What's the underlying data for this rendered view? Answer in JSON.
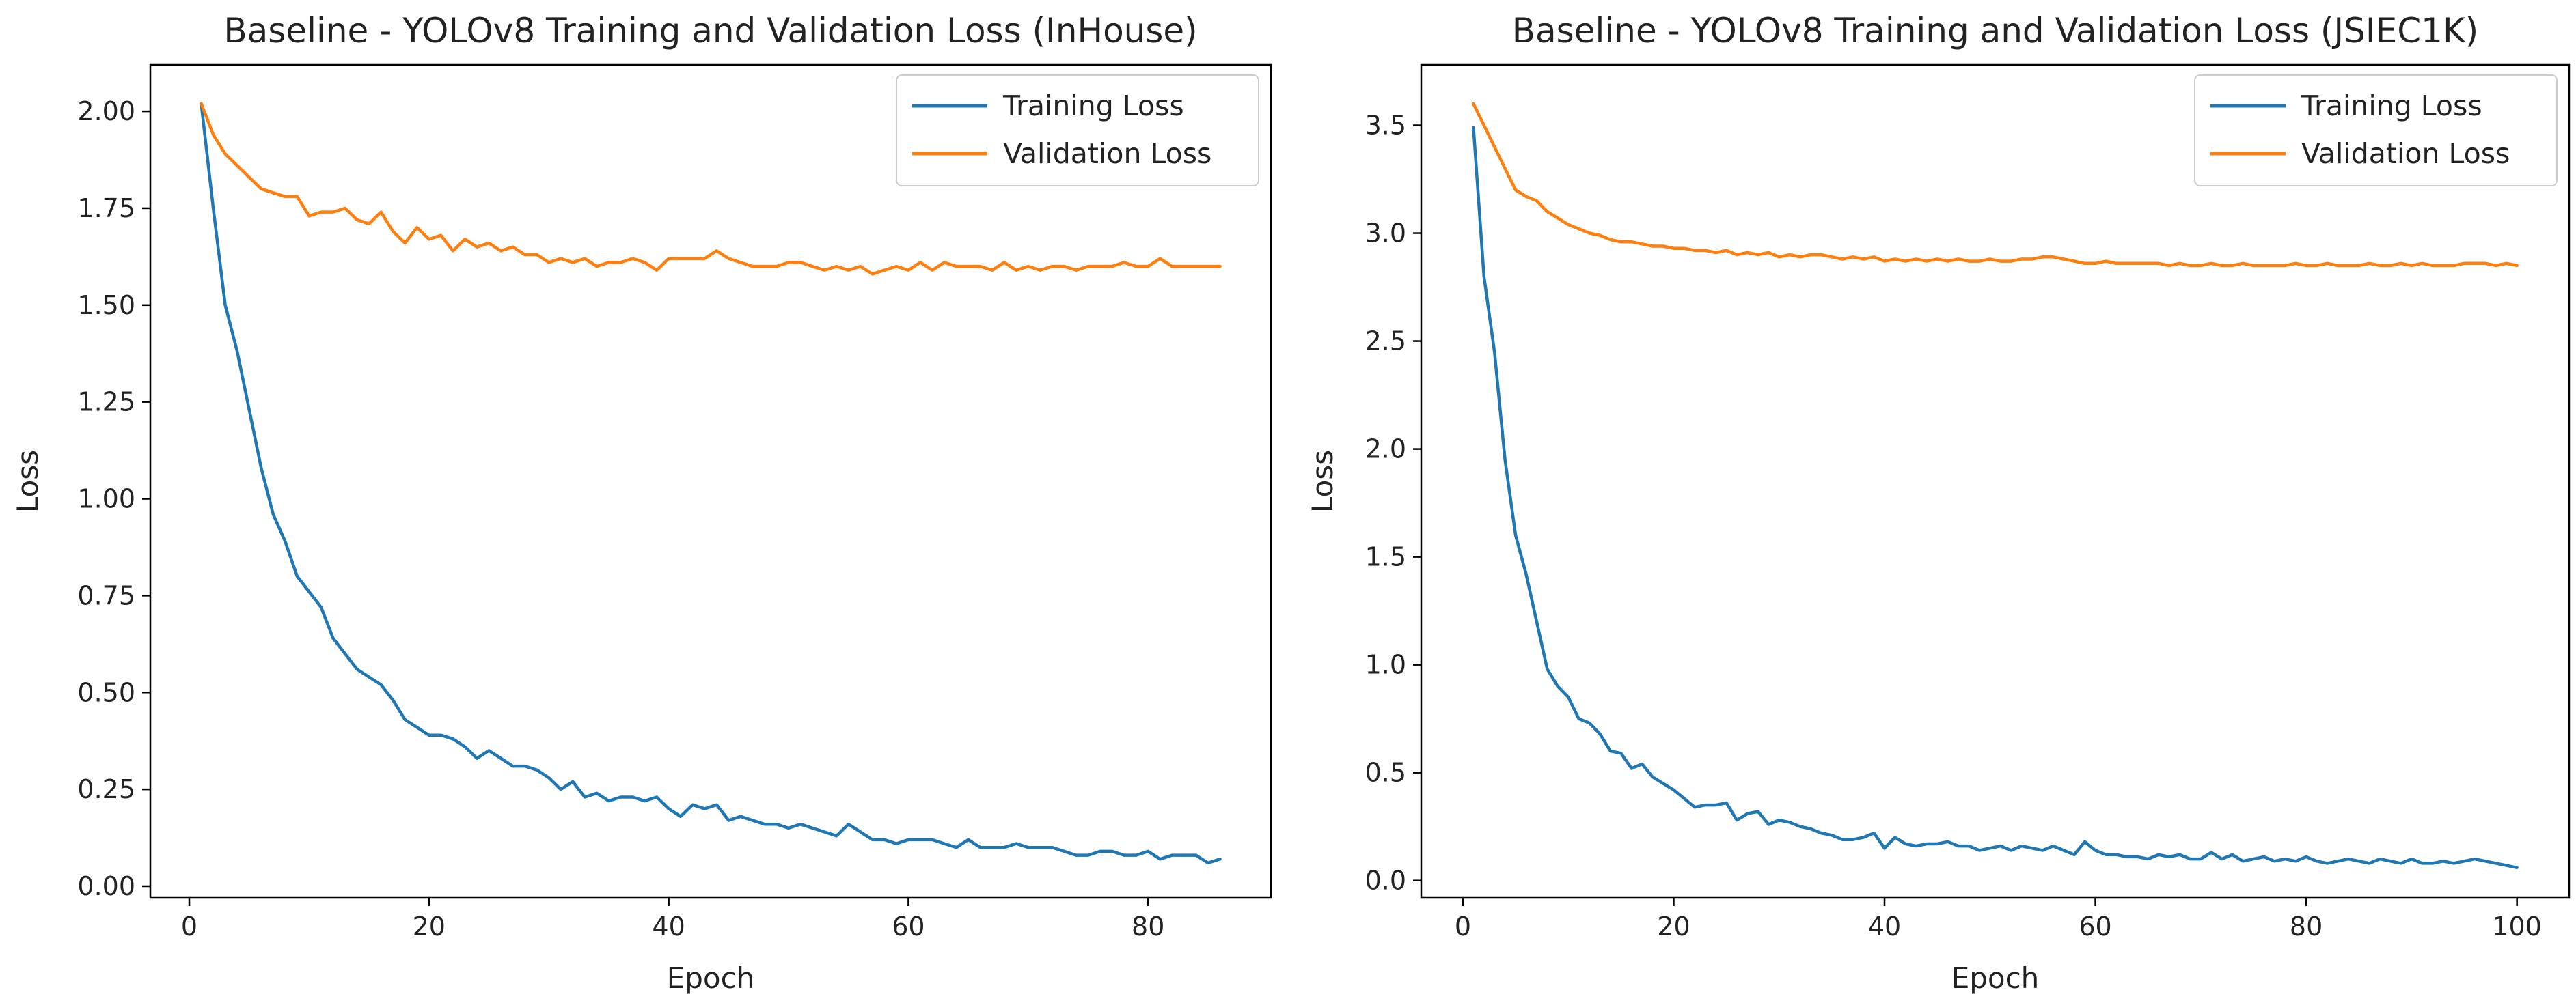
{
  "chart_data": [
    {
      "type": "line",
      "title": "Baseline - YOLOv8 Training and Validation Loss (InHouse)",
      "xlabel": "Epoch",
      "ylabel": "Loss",
      "xlim": [
        -3.25,
        90.25
      ],
      "ylim": [
        -0.03,
        2.12
      ],
      "xticks": [
        0,
        20,
        40,
        60,
        80
      ],
      "xtick_labels": [
        "0",
        "20",
        "40",
        "60",
        "80"
      ],
      "yticks": [
        0,
        0.25,
        0.5,
        0.75,
        1.0,
        1.25,
        1.5,
        1.75,
        2.0
      ],
      "ytick_labels": [
        "0.00",
        "0.25",
        "0.50",
        "0.75",
        "1.00",
        "1.25",
        "1.50",
        "1.75",
        "2.00"
      ],
      "grid": false,
      "legend_position": "upper right",
      "x_start": 1,
      "series": [
        {
          "name": "Training Loss",
          "color": "#1f77b4",
          "values": [
            2.02,
            1.75,
            1.5,
            1.38,
            1.23,
            1.08,
            0.96,
            0.89,
            0.8,
            0.76,
            0.72,
            0.64,
            0.6,
            0.56,
            0.54,
            0.52,
            0.48,
            0.43,
            0.41,
            0.39,
            0.39,
            0.38,
            0.36,
            0.33,
            0.35,
            0.33,
            0.31,
            0.31,
            0.3,
            0.28,
            0.25,
            0.27,
            0.23,
            0.24,
            0.22,
            0.23,
            0.23,
            0.22,
            0.23,
            0.2,
            0.18,
            0.21,
            0.2,
            0.21,
            0.17,
            0.18,
            0.17,
            0.16,
            0.16,
            0.15,
            0.16,
            0.15,
            0.14,
            0.13,
            0.16,
            0.14,
            0.12,
            0.12,
            0.11,
            0.12,
            0.12,
            0.12,
            0.11,
            0.1,
            0.12,
            0.1,
            0.1,
            0.1,
            0.11,
            0.1,
            0.1,
            0.1,
            0.09,
            0.08,
            0.08,
            0.09,
            0.09,
            0.08,
            0.08,
            0.09,
            0.07,
            0.08,
            0.08,
            0.08,
            0.06,
            0.07
          ]
        },
        {
          "name": "Validation Loss",
          "color": "#ff7f0e",
          "values": [
            2.02,
            1.94,
            1.89,
            1.86,
            1.83,
            1.8,
            1.79,
            1.78,
            1.78,
            1.73,
            1.74,
            1.74,
            1.75,
            1.72,
            1.71,
            1.74,
            1.69,
            1.66,
            1.7,
            1.67,
            1.68,
            1.64,
            1.67,
            1.65,
            1.66,
            1.64,
            1.65,
            1.63,
            1.63,
            1.61,
            1.62,
            1.61,
            1.62,
            1.6,
            1.61,
            1.61,
            1.62,
            1.61,
            1.59,
            1.62,
            1.62,
            1.62,
            1.62,
            1.64,
            1.62,
            1.61,
            1.6,
            1.6,
            1.6,
            1.61,
            1.61,
            1.6,
            1.59,
            1.6,
            1.59,
            1.6,
            1.58,
            1.59,
            1.6,
            1.59,
            1.61,
            1.59,
            1.61,
            1.6,
            1.6,
            1.6,
            1.59,
            1.61,
            1.59,
            1.6,
            1.59,
            1.6,
            1.6,
            1.59,
            1.6,
            1.6,
            1.6,
            1.61,
            1.6,
            1.6,
            1.62,
            1.6,
            1.6,
            1.6,
            1.6,
            1.6
          ]
        }
      ]
    },
    {
      "type": "line",
      "title": "Baseline - YOLOv8 Training and Validation Loss (JSIEC1K)",
      "xlabel": "Epoch",
      "ylabel": "Loss",
      "xlim": [
        -3.95,
        104.95
      ],
      "ylim": [
        -0.08,
        3.78
      ],
      "xticks": [
        0,
        20,
        40,
        60,
        80,
        100
      ],
      "xtick_labels": [
        "0",
        "20",
        "40",
        "60",
        "80",
        "100"
      ],
      "yticks": [
        0,
        0.5,
        1.0,
        1.5,
        2.0,
        2.5,
        3.0,
        3.5
      ],
      "ytick_labels": [
        "0.0",
        "0.5",
        "1.0",
        "1.5",
        "2.0",
        "2.5",
        "3.0",
        "3.5"
      ],
      "grid": false,
      "legend_position": "upper right",
      "x_start": 1,
      "series": [
        {
          "name": "Training Loss",
          "color": "#1f77b4",
          "values": [
            3.49,
            2.8,
            2.45,
            1.95,
            1.6,
            1.42,
            1.2,
            0.98,
            0.9,
            0.85,
            0.75,
            0.73,
            0.68,
            0.6,
            0.59,
            0.52,
            0.54,
            0.48,
            0.45,
            0.42,
            0.38,
            0.34,
            0.35,
            0.35,
            0.36,
            0.28,
            0.31,
            0.32,
            0.26,
            0.28,
            0.27,
            0.25,
            0.24,
            0.22,
            0.21,
            0.19,
            0.19,
            0.2,
            0.22,
            0.15,
            0.2,
            0.17,
            0.16,
            0.17,
            0.17,
            0.18,
            0.16,
            0.16,
            0.14,
            0.15,
            0.16,
            0.14,
            0.16,
            0.15,
            0.14,
            0.16,
            0.14,
            0.12,
            0.18,
            0.14,
            0.12,
            0.12,
            0.11,
            0.11,
            0.1,
            0.12,
            0.11,
            0.12,
            0.1,
            0.1,
            0.13,
            0.1,
            0.12,
            0.09,
            0.1,
            0.11,
            0.09,
            0.1,
            0.09,
            0.11,
            0.09,
            0.08,
            0.09,
            0.1,
            0.09,
            0.08,
            0.1,
            0.09,
            0.08,
            0.1,
            0.08,
            0.08,
            0.09,
            0.08,
            0.09,
            0.1,
            0.09,
            0.08,
            0.07,
            0.06
          ]
        },
        {
          "name": "Validation Loss",
          "color": "#ff7f0e",
          "values": [
            3.6,
            3.5,
            3.4,
            3.3,
            3.2,
            3.17,
            3.15,
            3.1,
            3.07,
            3.04,
            3.02,
            3.0,
            2.99,
            2.97,
            2.96,
            2.96,
            2.95,
            2.94,
            2.94,
            2.93,
            2.93,
            2.92,
            2.92,
            2.91,
            2.92,
            2.9,
            2.91,
            2.9,
            2.91,
            2.89,
            2.9,
            2.89,
            2.9,
            2.9,
            2.89,
            2.88,
            2.89,
            2.88,
            2.89,
            2.87,
            2.88,
            2.87,
            2.88,
            2.87,
            2.88,
            2.87,
            2.88,
            2.87,
            2.87,
            2.88,
            2.87,
            2.87,
            2.88,
            2.88,
            2.89,
            2.89,
            2.88,
            2.87,
            2.86,
            2.86,
            2.87,
            2.86,
            2.86,
            2.86,
            2.86,
            2.86,
            2.85,
            2.86,
            2.85,
            2.85,
            2.86,
            2.85,
            2.85,
            2.86,
            2.85,
            2.85,
            2.85,
            2.85,
            2.86,
            2.85,
            2.85,
            2.86,
            2.85,
            2.85,
            2.85,
            2.86,
            2.85,
            2.85,
            2.86,
            2.85,
            2.86,
            2.85,
            2.85,
            2.85,
            2.86,
            2.86,
            2.86,
            2.85,
            2.86,
            2.85
          ]
        }
      ]
    }
  ]
}
